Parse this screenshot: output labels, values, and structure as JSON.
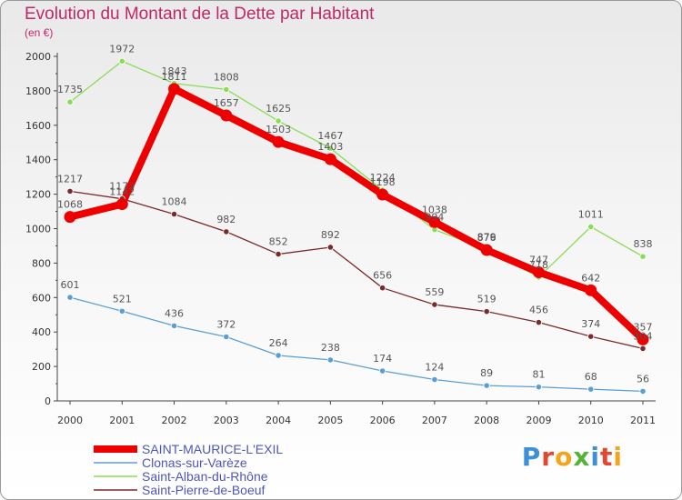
{
  "header": {
    "title": "Evolution du Montant de la Dette par Habitant",
    "unit": "(en €)"
  },
  "logo": {
    "text": "Proxiti"
  },
  "chart_data": {
    "type": "line",
    "title": "Evolution du Montant de la Dette par Habitant",
    "subtitle": "(en €)",
    "xlabel": "",
    "ylabel": "",
    "categories": [
      "2000",
      "2001",
      "2002",
      "2003",
      "2004",
      "2005",
      "2006",
      "2007",
      "2008",
      "2009",
      "2010",
      "2011"
    ],
    "ylim": [
      0,
      2000
    ],
    "yticks": [
      0,
      200,
      400,
      600,
      800,
      1000,
      1200,
      1400,
      1600,
      1800,
      2000
    ],
    "grid": false,
    "legend_position": "bottom-left",
    "series": [
      {
        "name": "SAINT-MAURICE-L'EXIL",
        "color": "#ee0000",
        "values": [
          1068,
          1142,
          1811,
          1657,
          1503,
          1403,
          1198,
          1038,
          876,
          747,
          642,
          357
        ]
      },
      {
        "name": "Clonas-sur-Varèze",
        "color": "#5a9fd4",
        "values": [
          601,
          521,
          436,
          372,
          264,
          238,
          174,
          124,
          89,
          81,
          68,
          56
        ]
      },
      {
        "name": "Saint-Alban-du-Rhône",
        "color": "#88dd55",
        "values": [
          1735,
          1972,
          1843,
          1808,
          1625,
          1467,
          1224,
          994,
          879,
          718,
          1011,
          838
        ]
      },
      {
        "name": "Saint-Pierre-de-Boeuf",
        "color": "#7a2a2a",
        "values": [
          1217,
          1173,
          1084,
          982,
          852,
          892,
          656,
          559,
          519,
          456,
          374,
          304
        ]
      }
    ]
  }
}
